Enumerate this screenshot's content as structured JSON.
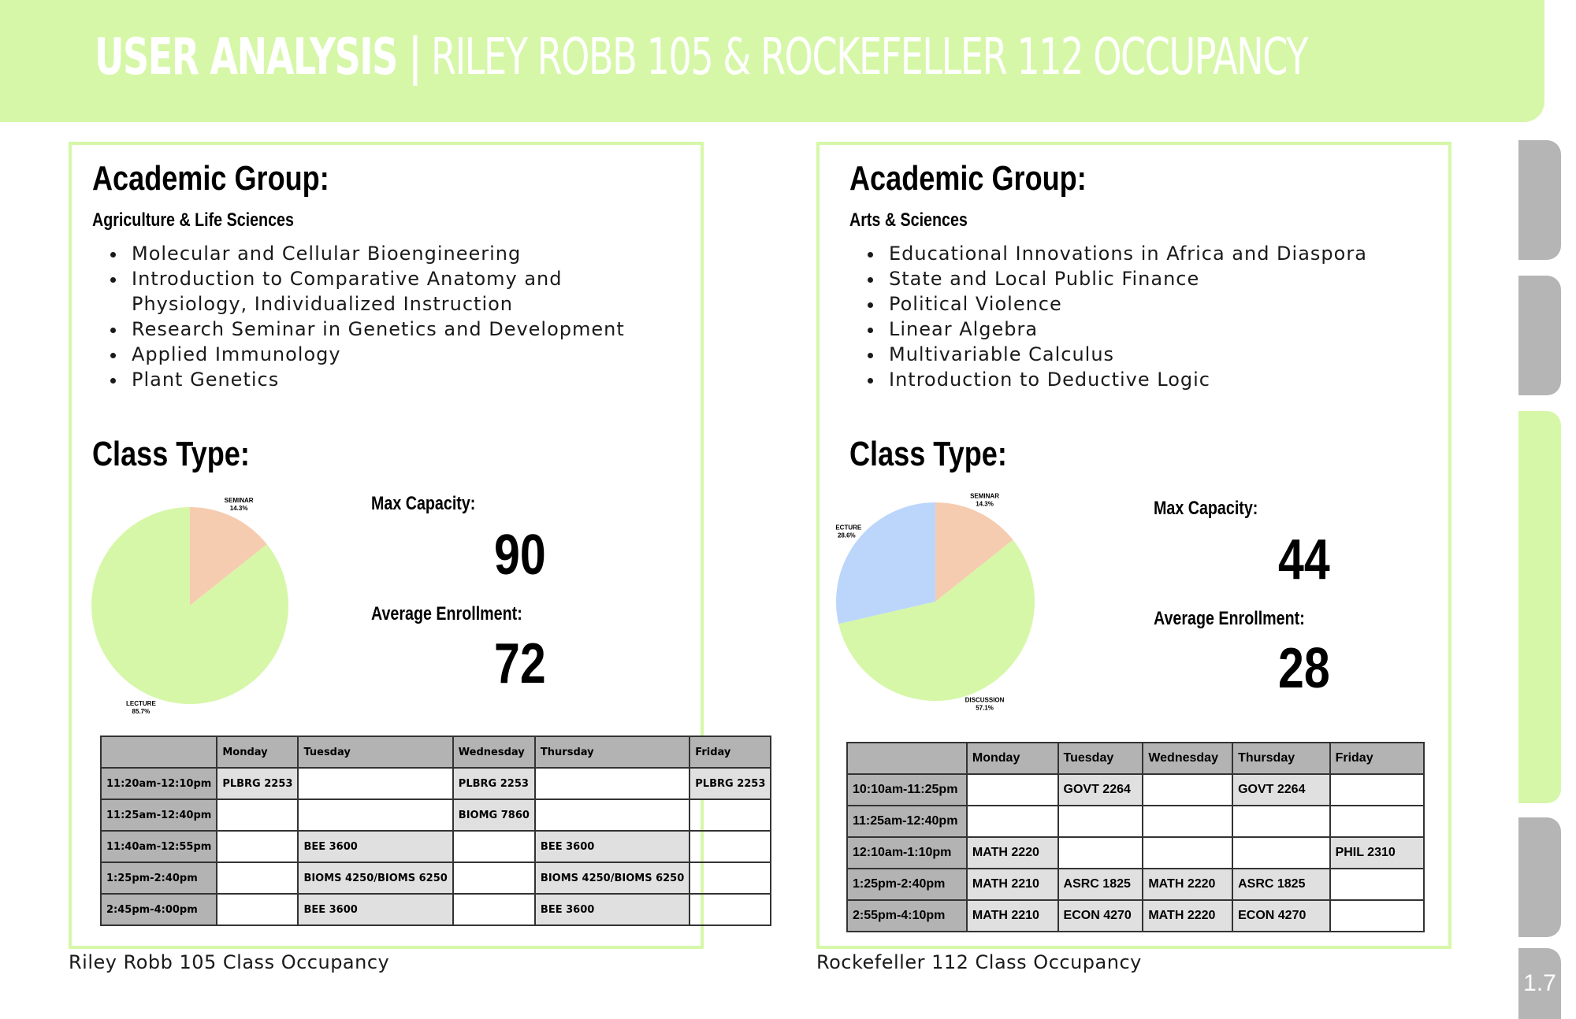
{
  "header": {
    "title_bold": "USER ANALYSIS |",
    "title_light": " RILEY ROBB 105 & ROCKEFELLER 112 OCCUPANCY"
  },
  "colors": {
    "accent": "#d6f7a8",
    "seminar": "#f6ccb0",
    "lecture": "#bcd6fb",
    "tab": "#b5b5b5"
  },
  "page_number": "1.7",
  "left": {
    "group_heading": "Academic Group:",
    "group_name": "Agriculture & Life Sciences",
    "courses": [
      "Molecular and Cellular Bioengineering",
      "Introduction to Comparative Anatomy and",
      "Physiology, Individualized Instruction",
      "Research Seminar in Genetics and Development",
      "Applied Immunology",
      "Plant Genetics"
    ],
    "class_type_heading": "Class Type:",
    "max_capacity_label": "Max Capacity:",
    "max_capacity": "90",
    "avg_enrollment_label": "Average Enrollment:",
    "avg_enrollment": "72",
    "table": {
      "headers": [
        "",
        "Monday",
        "Tuesday",
        "Wednesday",
        "Thursday",
        "Friday"
      ],
      "rows": [
        [
          "11:20am-12:10pm",
          "PLBRG 2253",
          "",
          "PLBRG 2253",
          "",
          "PLBRG 2253"
        ],
        [
          "11:25am-12:40pm",
          "",
          "",
          "BIOMG 7860",
          "",
          ""
        ],
        [
          "11:40am-12:55pm",
          "",
          "BEE 3600",
          "",
          "BEE 3600",
          ""
        ],
        [
          "1:25pm-2:40pm",
          "",
          "BIOMS 4250/BIOMS 6250",
          "",
          "BIOMS 4250/BIOMS 6250",
          ""
        ],
        [
          "2:45pm-4:00pm",
          "",
          "BEE 3600",
          "",
          "BEE 3600",
          ""
        ]
      ]
    },
    "caption": "Riley Robb 105 Class Occupancy"
  },
  "right": {
    "group_heading": "Academic Group:",
    "group_name": "Arts & Sciences",
    "courses": [
      "Educational Innovations in Africa and Diaspora",
      "State and Local Public Finance",
      "Political Violence",
      "Linear Algebra",
      "Multivariable Calculus",
      "Introduction to Deductive Logic"
    ],
    "class_type_heading": "Class Type:",
    "max_capacity_label": "Max Capacity:",
    "max_capacity": "44",
    "avg_enrollment_label": "Average Enrollment:",
    "avg_enrollment": "28",
    "table": {
      "headers": [
        "",
        "Monday",
        "Tuesday",
        "Wednesday",
        "Thursday",
        "Friday"
      ],
      "rows": [
        [
          "10:10am-11:25pm",
          "",
          "GOVT 2264",
          "",
          "GOVT 2264",
          ""
        ],
        [
          "11:25am-12:40pm",
          "",
          "",
          "",
          "",
          ""
        ],
        [
          "12:10am-1:10pm",
          "MATH 2220",
          "",
          "",
          "",
          "PHIL 2310"
        ],
        [
          "1:25pm-2:40pm",
          "MATH 2210",
          "ASRC 1825",
          "MATH 2220",
          "ASRC 1825",
          ""
        ],
        [
          "2:55pm-4:10pm",
          "MATH 2210",
          "ECON 4270",
          "MATH 2220",
          "ECON 4270",
          ""
        ]
      ]
    },
    "caption": "Rockefeller 112 Class Occupancy"
  },
  "chart_data": [
    {
      "type": "pie",
      "categories": [
        "SEMINAR",
        "LECTURE"
      ],
      "values": [
        14.3,
        85.7
      ],
      "labels": [
        "14.3%",
        "85.7%"
      ],
      "colors": [
        "#f6ccb0",
        "#d6f7a8"
      ]
    },
    {
      "type": "pie",
      "categories": [
        "SEMINAR",
        "DISCUSSION",
        "LECTURE"
      ],
      "values": [
        14.3,
        57.1,
        28.6
      ],
      "labels": [
        "14.3%",
        "57.1%",
        "28.6%"
      ],
      "colors": [
        "#f6ccb0",
        "#d6f7a8",
        "#bcd6fb"
      ]
    }
  ]
}
